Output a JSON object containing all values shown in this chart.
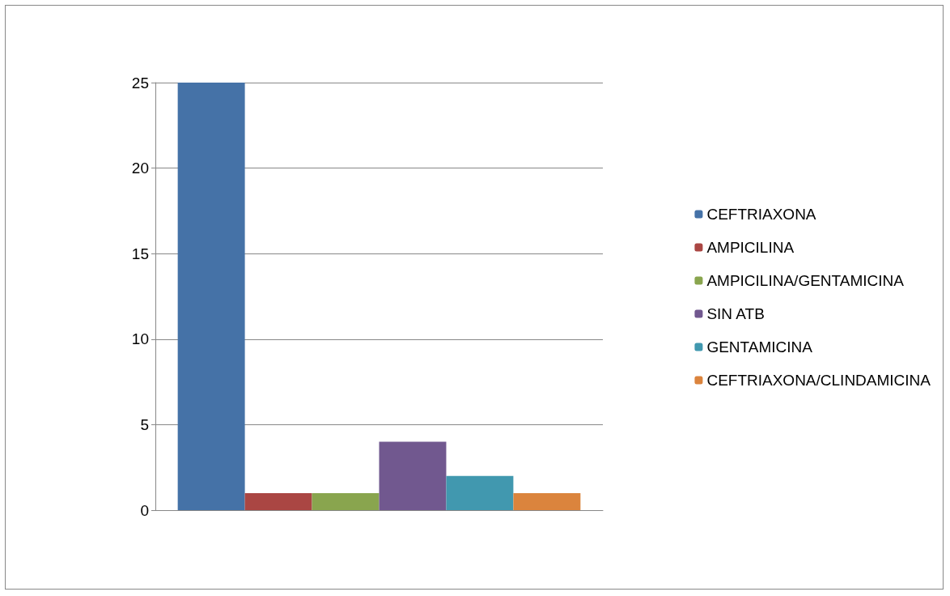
{
  "chart_data": {
    "type": "bar",
    "categories": [
      null
    ],
    "series": [
      {
        "name": "CEFTRIAXONA",
        "color": "#4572a7",
        "values": [
          25
        ]
      },
      {
        "name": "AMPICILINA",
        "color": "#aa4643",
        "values": [
          1
        ]
      },
      {
        "name": "AMPICILINA/GENTAMICINA",
        "color": "#89a54e",
        "values": [
          1
        ]
      },
      {
        "name": "SIN ATB",
        "color": "#71588f",
        "values": [
          4
        ]
      },
      {
        "name": "GENTAMICINA",
        "color": "#4198af",
        "values": [
          2
        ]
      },
      {
        "name": "CEFTRIAXONA/CLINDAMICINA",
        "color": "#db843d",
        "values": [
          1
        ]
      }
    ],
    "ylim": [
      0,
      25
    ],
    "yticks": [
      0,
      5,
      10,
      15,
      20,
      25
    ],
    "grid": "y",
    "legend": "right"
  }
}
